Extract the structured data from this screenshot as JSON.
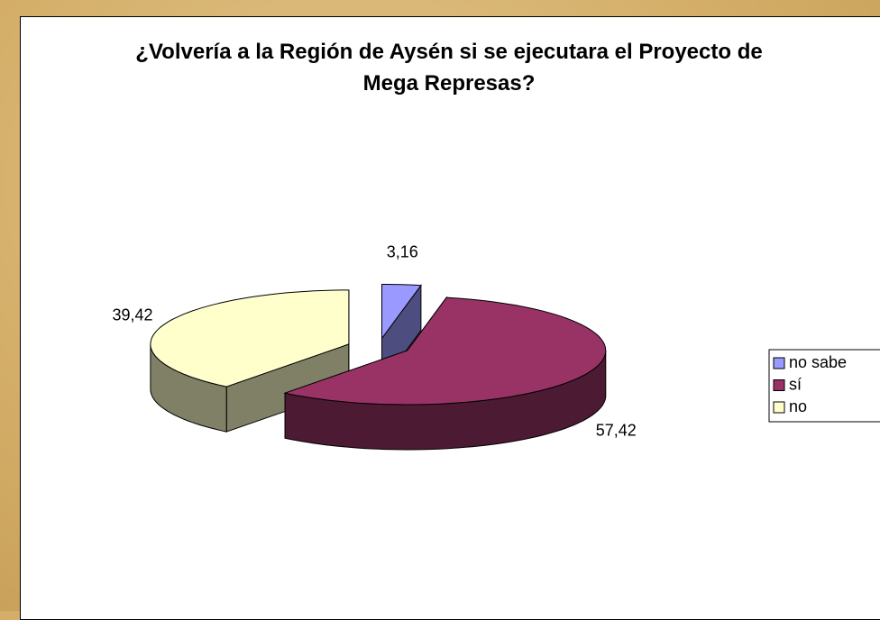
{
  "chart_data": {
    "type": "pie3d",
    "title": "¿Volvería a la Región de Aysén si se ejecutara el Proyecto de Mega Represas?",
    "categories": [
      "no sabe",
      "sí",
      "no"
    ],
    "values": [
      3.16,
      57.42,
      39.42
    ],
    "value_labels": [
      "3,16",
      "57,42",
      "39,42"
    ],
    "colors": [
      "#9999ff",
      "#993366",
      "#ffffcc"
    ],
    "side_colors": [
      "#4d4d80",
      "#4d1a33",
      "#808066"
    ],
    "legend": "right"
  }
}
